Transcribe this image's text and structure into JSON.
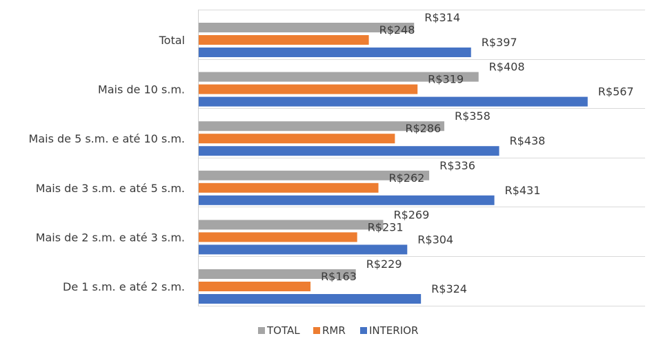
{
  "chart_data": {
    "type": "bar",
    "orientation": "horizontal",
    "categories": [
      "Total",
      "Mais de 10 s.m.",
      "Mais de 5 s.m. e até 10 s.m.",
      "Mais de 3 s.m. e até 5 s.m.",
      "Mais de 2 s.m. e até 3 s.m.",
      "De 1 s.m. e até 2 s.m."
    ],
    "series": [
      {
        "name": "TOTAL",
        "color": "#a5a5a5",
        "values": [
          314,
          408,
          358,
          336,
          269,
          229
        ]
      },
      {
        "name": "RMR",
        "color": "#ed7d31",
        "values": [
          248,
          319,
          286,
          262,
          231,
          163
        ]
      },
      {
        "name": "INTERIOR",
        "color": "#4472c4",
        "values": [
          397,
          567,
          438,
          431,
          304,
          324
        ]
      }
    ],
    "value_prefix": "R$",
    "xlim": [
      0,
      600
    ],
    "grid": true,
    "legend_position": "bottom"
  }
}
